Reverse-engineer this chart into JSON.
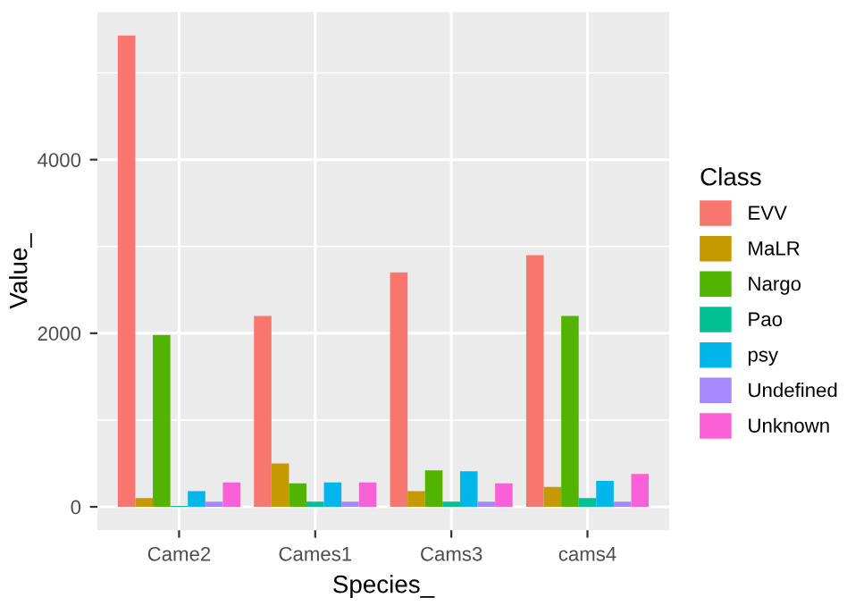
{
  "chart_data": {
    "type": "bar",
    "xlabel": "Species_",
    "ylabel": "Value_",
    "legend_title": "Class",
    "legend": "right",
    "categories": [
      "Came2",
      "Cames1",
      "Cams3",
      "cams4"
    ],
    "series": [
      {
        "name": "EVV",
        "color": "#f8766d",
        "values": [
          5430,
          2200,
          2700,
          2900
        ]
      },
      {
        "name": "MaLR",
        "color": "#c49a00",
        "values": [
          100,
          500,
          180,
          230
        ]
      },
      {
        "name": "Nargo",
        "color": "#53b400",
        "values": [
          1980,
          270,
          420,
          2200
        ]
      },
      {
        "name": "Pao",
        "color": "#00c094",
        "values": [
          10,
          60,
          60,
          100
        ]
      },
      {
        "name": "psy",
        "color": "#00b6eb",
        "values": [
          180,
          280,
          410,
          300
        ]
      },
      {
        "name": "Undefined",
        "color": "#a58aff",
        "values": [
          60,
          60,
          60,
          60
        ]
      },
      {
        "name": "Unknown",
        "color": "#fb61d7",
        "values": [
          280,
          280,
          270,
          380
        ]
      }
    ],
    "ylim": [
      -270,
      5700
    ],
    "yticks": [
      0,
      2000,
      4000
    ],
    "grid": true
  }
}
